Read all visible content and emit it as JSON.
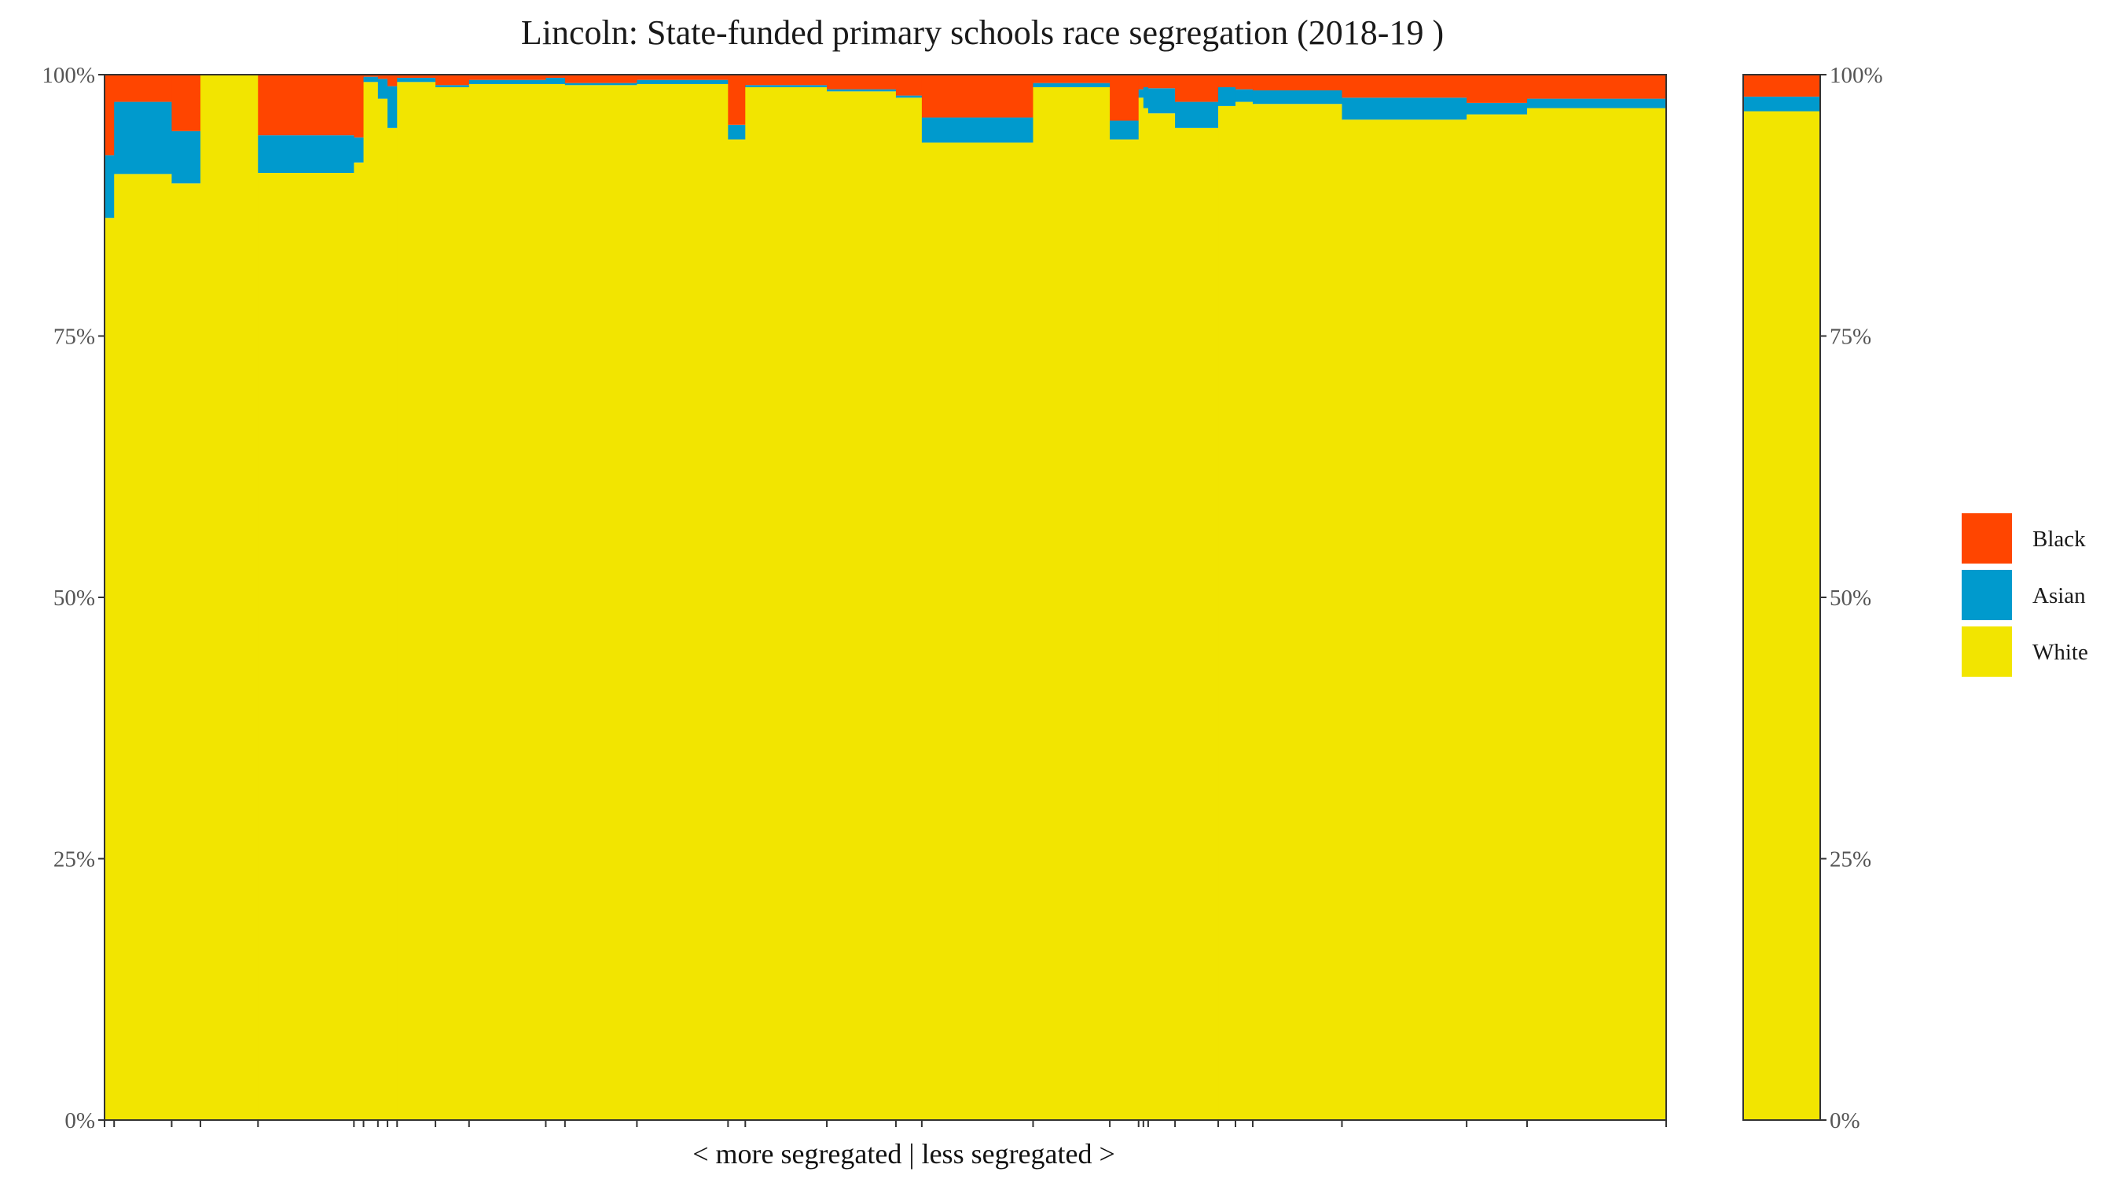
{
  "chart_data": {
    "type": "bar",
    "subtype": "stacked-variable-width",
    "title": "Lincoln: State-funded primary schools race segregation (2018-19 )",
    "xlabel": "< more segregated | less segregated >",
    "ylabel": "",
    "ylim": [
      0,
      100
    ],
    "y_ticks": [
      "0%",
      "25%",
      "50%",
      "75%",
      "100%"
    ],
    "y_tick_values": [
      0,
      25,
      50,
      75,
      100
    ],
    "grid": false,
    "legend_position": "right",
    "stack_order": [
      "White",
      "Asian",
      "Black"
    ],
    "legend": [
      {
        "name": "Black",
        "color": "#FF4500"
      },
      {
        "name": "Asian",
        "color": "#009ACD"
      },
      {
        "name": "White",
        "color": "#F2E500"
      }
    ],
    "colors": {
      "Black": "#FF4500",
      "Asian": "#009ACD",
      "White": "#F2E500"
    },
    "schools": [
      {
        "width": 1,
        "White": 86.3,
        "Asian": 6.0,
        "Black": 7.7
      },
      {
        "width": 6,
        "White": 90.5,
        "Asian": 6.9,
        "Black": 2.6
      },
      {
        "width": 3,
        "White": 89.6,
        "Asian": 5.0,
        "Black": 5.4
      },
      {
        "width": 6,
        "White": 100.0,
        "Asian": 0.0,
        "Black": 0.0
      },
      {
        "width": 10,
        "White": 90.6,
        "Asian": 3.6,
        "Black": 5.8
      },
      {
        "width": 1,
        "White": 91.6,
        "Asian": 2.4,
        "Black": 6.0
      },
      {
        "width": 1.5,
        "White": 99.3,
        "Asian": 0.5,
        "Black": 0.2
      },
      {
        "width": 1,
        "White": 97.7,
        "Asian": 1.9,
        "Black": 0.4
      },
      {
        "width": 1,
        "White": 94.9,
        "Asian": 4.0,
        "Black": 1.1
      },
      {
        "width": 4,
        "White": 99.3,
        "Asian": 0.4,
        "Black": 0.3
      },
      {
        "width": 3.5,
        "White": 98.8,
        "Asian": 0.2,
        "Black": 1.0
      },
      {
        "width": 8,
        "White": 99.1,
        "Asian": 0.4,
        "Black": 0.5
      },
      {
        "width": 2,
        "White": 99.1,
        "Asian": 0.6,
        "Black": 0.3
      },
      {
        "width": 7.5,
        "White": 99.0,
        "Asian": 0.2,
        "Black": 0.8
      },
      {
        "width": 9.5,
        "White": 99.1,
        "Asian": 0.4,
        "Black": 0.5
      },
      {
        "width": 1.8,
        "White": 93.8,
        "Asian": 1.4,
        "Black": 4.8
      },
      {
        "width": 8.5,
        "White": 98.8,
        "Asian": 0.2,
        "Black": 1.0
      },
      {
        "width": 7.2,
        "White": 98.4,
        "Asian": 0.2,
        "Black": 1.4
      },
      {
        "width": 2.7,
        "White": 97.8,
        "Asian": 0.2,
        "Black": 2.0
      },
      {
        "width": 11.6,
        "White": 93.5,
        "Asian": 2.4,
        "Black": 4.1
      },
      {
        "width": 8,
        "White": 98.8,
        "Asian": 0.4,
        "Black": 0.8
      },
      {
        "width": 3,
        "White": 93.8,
        "Asian": 1.8,
        "Black": 4.4
      },
      {
        "width": 0.5,
        "White": 97.8,
        "Asian": 0.8,
        "Black": 1.4
      },
      {
        "width": 0.5,
        "White": 96.8,
        "Asian": 2.0,
        "Black": 1.2
      },
      {
        "width": 2.8,
        "White": 96.3,
        "Asian": 2.4,
        "Black": 1.3
      },
      {
        "width": 4.5,
        "White": 94.9,
        "Asian": 2.5,
        "Black": 2.6
      },
      {
        "width": 1.8,
        "White": 97.0,
        "Asian": 1.8,
        "Black": 1.2
      },
      {
        "width": 1.8,
        "White": 97.4,
        "Asian": 1.2,
        "Black": 1.4
      },
      {
        "width": 9.3,
        "White": 97.2,
        "Asian": 1.3,
        "Black": 1.5
      },
      {
        "width": 13,
        "White": 95.7,
        "Asian": 2.1,
        "Black": 2.2
      },
      {
        "width": 6.3,
        "White": 96.2,
        "Asian": 1.1,
        "Black": 2.7
      },
      {
        "width": 14.5,
        "White": 96.8,
        "Asian": 0.9,
        "Black": 2.3
      }
    ],
    "total_bar": {
      "White": 96.5,
      "Asian": 1.4,
      "Black": 2.1
    }
  }
}
